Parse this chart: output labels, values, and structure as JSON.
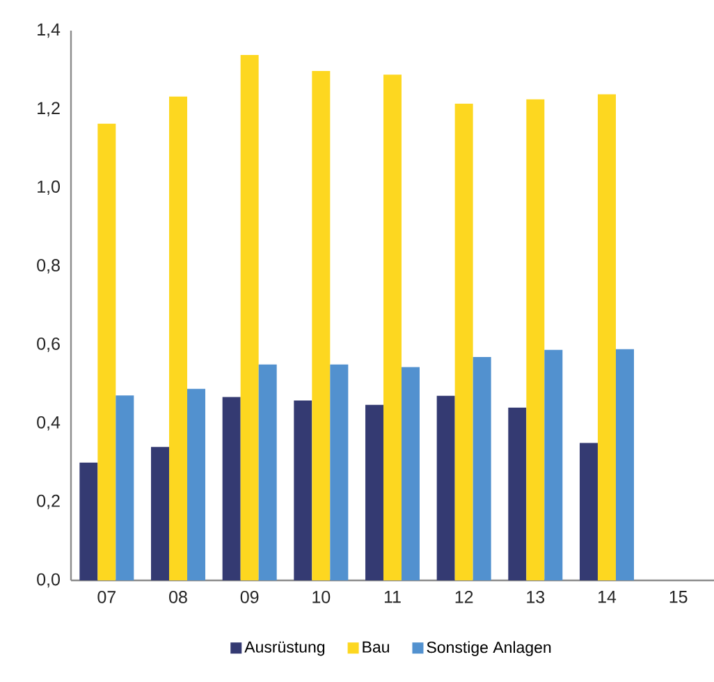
{
  "chart_data": {
    "type": "bar",
    "categories": [
      "07",
      "08",
      "09",
      "10",
      "11",
      "12",
      "13",
      "14",
      "15"
    ],
    "series": [
      {
        "name": "Ausrüstung",
        "color": "#343a72",
        "values": [
          0.3,
          0.34,
          0.467,
          0.458,
          0.447,
          0.47,
          0.44,
          0.35,
          null
        ]
      },
      {
        "name": "Bau",
        "color": "#fdd720",
        "values": [
          1.163,
          1.232,
          1.338,
          1.297,
          1.288,
          1.214,
          1.225,
          1.238,
          null
        ]
      },
      {
        "name": "Sonstige Anlagen",
        "color": "#5291cf",
        "values": [
          0.471,
          0.488,
          0.55,
          0.55,
          0.543,
          0.569,
          0.587,
          0.589,
          null
        ]
      }
    ],
    "ylim": [
      0,
      1.4
    ],
    "yticks": [
      {
        "value": 0,
        "label": "0,0"
      },
      {
        "value": 0.2,
        "label": "0,2"
      },
      {
        "value": 0.4,
        "label": "0,4"
      },
      {
        "value": 0.6,
        "label": "0,6"
      },
      {
        "value": 0.8,
        "label": "0,8"
      },
      {
        "value": 1.0,
        "label": "1,0"
      },
      {
        "value": 1.2,
        "label": "1,2"
      },
      {
        "value": 1.4,
        "label": "1,4"
      }
    ],
    "legend": "bottom"
  }
}
